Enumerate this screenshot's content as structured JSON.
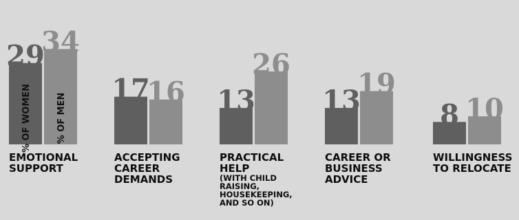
{
  "chart_data": {
    "type": "bar",
    "categories": [
      "EMOTIONAL\nSUPPORT",
      "ACCEPTING\nCAREER\nDEMANDS",
      "PRACTICAL\nHELP",
      "CAREER OR\nBUSINESS\nADVICE",
      "WILLINGNESS\nTO RELOCATE"
    ],
    "category_notes": [
      "",
      "",
      "(WITH CHILD\nRAISING,\nHOUSEKEEPING,\nAND SO ON)",
      "",
      ""
    ],
    "series": [
      {
        "name": "% OF WOMEN",
        "values": [
          29,
          17,
          13,
          13,
          8
        ]
      },
      {
        "name": "% OF MEN",
        "values": [
          34,
          16,
          26,
          19,
          10
        ]
      }
    ],
    "ylim": [
      0,
      34
    ],
    "grid": false,
    "legend": "inside first bars (rotated)",
    "colors": {
      "women": "#5f5f5f",
      "men": "#8d8d8d",
      "background": "#d9d9d9"
    }
  }
}
